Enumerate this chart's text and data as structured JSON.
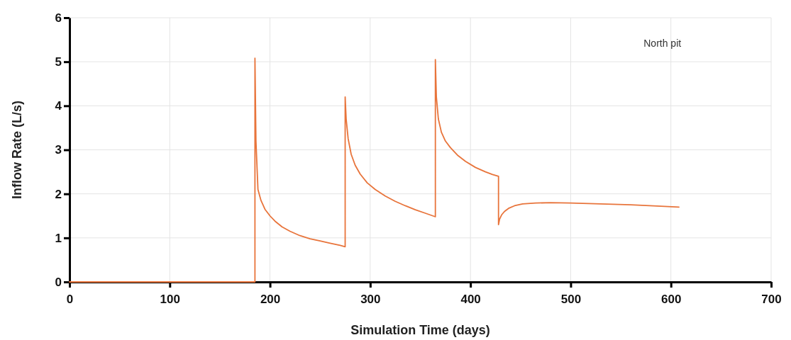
{
  "chart_data": {
    "type": "line",
    "xlabel": "Simulation Time (days)",
    "ylabel": "Inflow Rate (L/s)",
    "annotations": [
      "North pit"
    ],
    "xlim": [
      0,
      700
    ],
    "xticks": [
      0,
      100,
      200,
      300,
      400,
      500,
      600,
      700
    ],
    "ylim": [
      0,
      6
    ],
    "yticks": [
      0,
      1,
      2,
      3,
      4,
      5,
      6
    ],
    "grid": true,
    "series": [
      {
        "color": "#e8743b",
        "x": [
          0,
          185,
          185,
          186,
          188,
          191,
          195,
          200,
          205,
          212,
          220,
          230,
          240,
          250,
          260,
          270,
          275,
          275,
          276,
          278,
          281,
          285,
          290,
          297,
          305,
          315,
          325,
          335,
          345,
          355,
          365,
          365,
          366,
          368,
          371,
          375,
          380,
          387,
          395,
          405,
          415,
          422,
          428,
          428,
          429,
          431,
          434,
          438,
          444,
          452,
          465,
          480,
          500,
          530,
          560,
          590,
          608
        ],
        "values": [
          0,
          0,
          5.08,
          3.2,
          2.1,
          1.85,
          1.65,
          1.5,
          1.38,
          1.25,
          1.15,
          1.05,
          0.98,
          0.93,
          0.88,
          0.83,
          0.8,
          4.2,
          3.7,
          3.25,
          2.9,
          2.65,
          2.45,
          2.25,
          2.1,
          1.95,
          1.83,
          1.73,
          1.64,
          1.56,
          1.48,
          5.05,
          4.2,
          3.7,
          3.4,
          3.2,
          3.05,
          2.88,
          2.74,
          2.6,
          2.5,
          2.44,
          2.4,
          1.3,
          1.42,
          1.52,
          1.6,
          1.67,
          1.73,
          1.77,
          1.79,
          1.8,
          1.79,
          1.77,
          1.75,
          1.72,
          1.7
        ]
      }
    ]
  }
}
